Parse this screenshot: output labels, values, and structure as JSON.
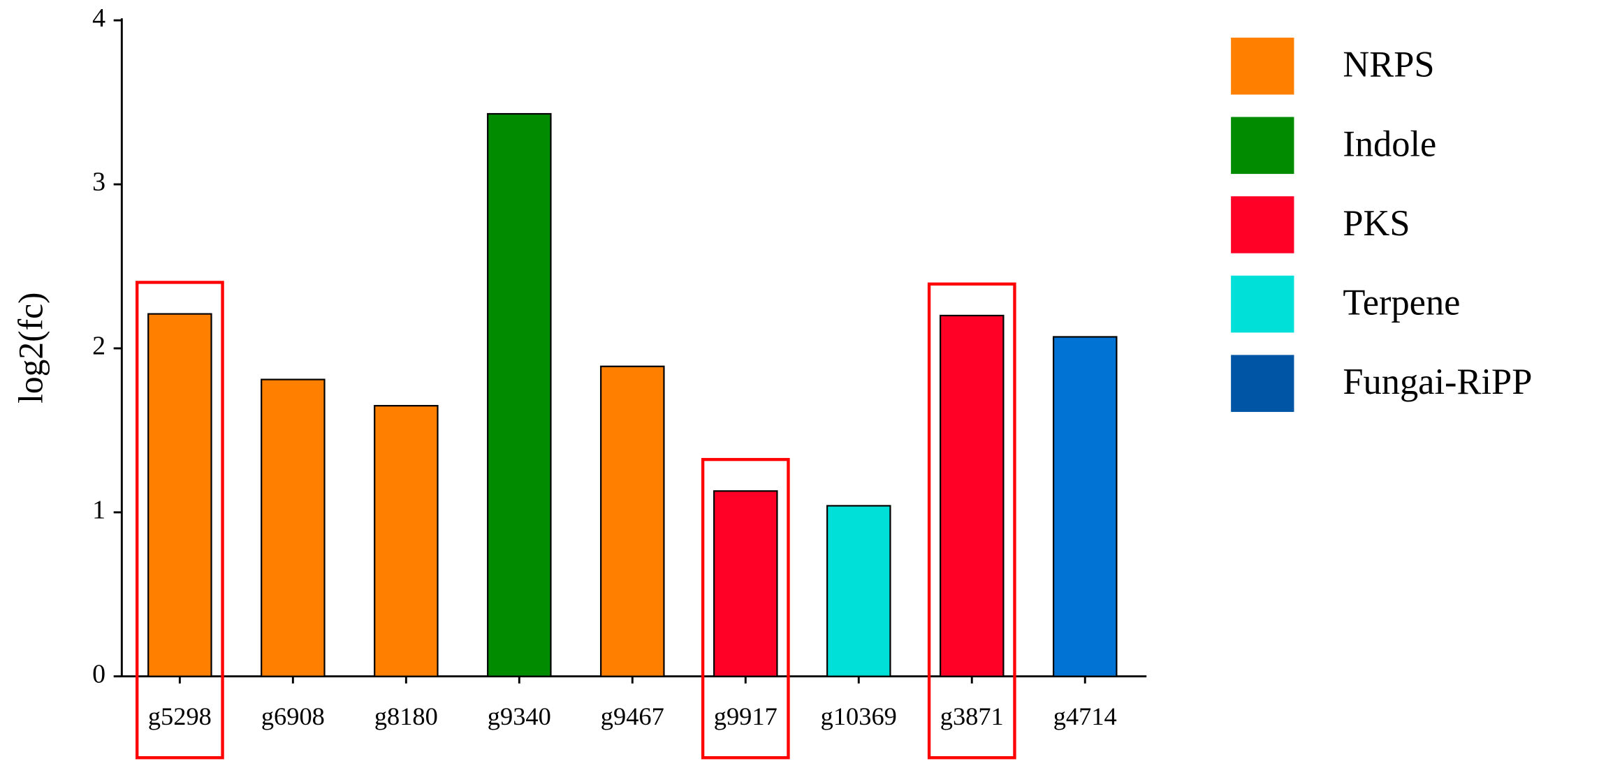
{
  "chart_data": {
    "type": "bar",
    "y_label": "log2(fc)",
    "categories": [
      "g5298",
      "g6908",
      "g8180",
      "g9340",
      "g9467",
      "g9917",
      "g10369",
      "g3871",
      "g4714"
    ],
    "values": [
      2.21,
      1.81,
      1.65,
      3.43,
      1.89,
      1.13,
      1.04,
      2.2,
      2.07
    ],
    "colors": [
      "#ff7f00",
      "#ff7f00",
      "#ff7f00",
      "#008b00",
      "#ff7f00",
      "#ff0027",
      "#00e0d8",
      "#ff0027",
      "#0073d4"
    ],
    "ylim": [
      0,
      4
    ],
    "yticks": [
      0,
      1,
      2,
      3,
      4
    ],
    "grid": false,
    "legend": [
      {
        "name": "NRPS",
        "color": "#ff7f00"
      },
      {
        "name": "Indole",
        "color": "#008b00"
      },
      {
        "name": "PKS",
        "color": "#ff0027"
      },
      {
        "name": "Terpene",
        "color": "#00e0d8"
      },
      {
        "name": "Fungai-RiPP",
        "color": "#0055a5"
      }
    ],
    "legend_position": "right",
    "highlighted": [
      "g5298",
      "g9917",
      "g3871"
    ],
    "highlight_color": "#ff0000"
  }
}
